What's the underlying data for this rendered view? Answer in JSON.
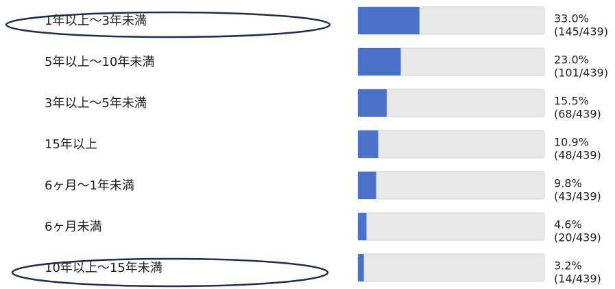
{
  "chart_data": {
    "type": "bar",
    "orientation": "horizontal",
    "categories": [
      "1年以上～3年未満",
      "5年以上～10年未満",
      "3年以上～5年未満",
      "15年以上",
      "6ヶ月～1年未満",
      "6ヶ月未満",
      "10年以上～15年未満"
    ],
    "values": [
      33.0,
      23.0,
      15.5,
      10.9,
      9.8,
      4.6,
      3.2
    ],
    "value_labels": [
      "33.0%",
      "23.0%",
      "15.5%",
      "10.9%",
      "9.8%",
      "4.6%",
      "3.2%"
    ],
    "count_labels": [
      "(145/439)",
      "(101/439)",
      "(68/439)",
      "(48/439)",
      "(43/439)",
      "(20/439)",
      "(14/439)"
    ],
    "color": "#4a72c8",
    "track_color": "#e8e8e8",
    "xlim": [
      0,
      100
    ]
  }
}
